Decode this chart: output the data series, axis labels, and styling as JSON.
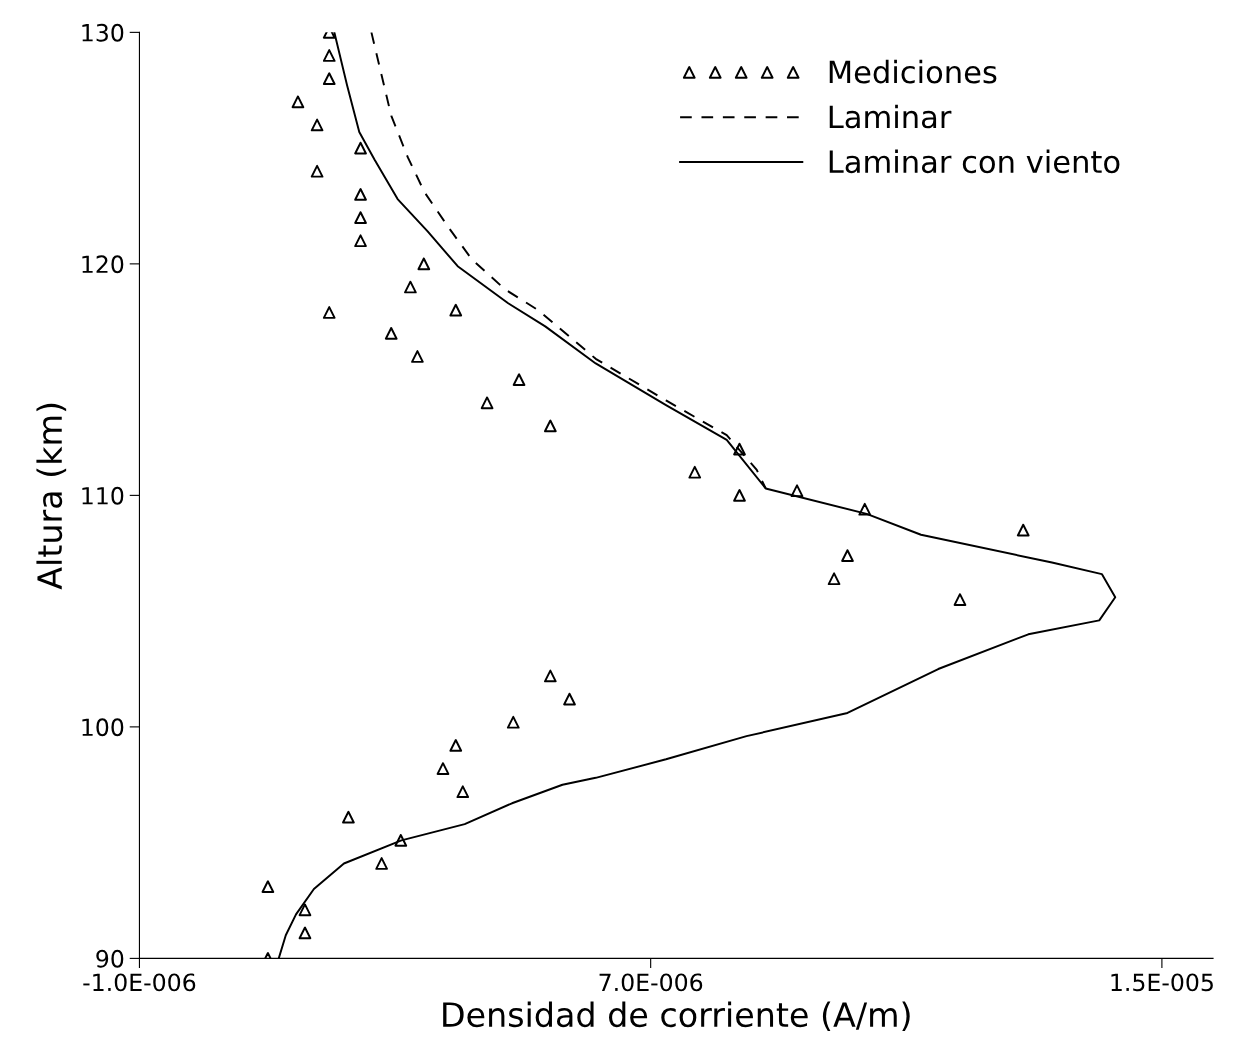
{
  "chart_data": {
    "type": "scatter",
    "xlabel": "Densidad de corriente (A/m)",
    "ylabel": "Altura (km)",
    "xlim": [
      -1e-06,
      1.58e-05
    ],
    "ylim": [
      90,
      130
    ],
    "xticks": [
      {
        "value": -1e-06,
        "label": "-1.0E-006"
      },
      {
        "value": 7e-06,
        "label": "7.0E-006"
      },
      {
        "value": 1.5e-05,
        "label": "1.5E-005"
      }
    ],
    "yticks": [
      90,
      100,
      110,
      120,
      130
    ],
    "grid": false,
    "legend": "top right",
    "series": [
      {
        "name": "Mediciones",
        "marker": "triangle",
        "color": "#000000",
        "x": [
          1.97e-06,
          1.97e-06,
          1.97e-06,
          1.48e-06,
          1.78e-06,
          2.46e-06,
          1.78e-06,
          2.46e-06,
          2.46e-06,
          2.46e-06,
          3.45e-06,
          3.24e-06,
          3.95e-06,
          1.97e-06,
          2.94e-06,
          3.35e-06,
          4.94e-06,
          4.44e-06,
          5.43e-06,
          8.39e-06,
          7.69e-06,
          8.39e-06,
          9.29e-06,
          1.035e-05,
          1.283e-05,
          1.008e-05,
          9.87e-06,
          1.184e-05,
          5.43e-06,
          5.73e-06,
          4.85e-06,
          3.95e-06,
          3.75e-06,
          4.06e-06,
          2.27e-06,
          3.09e-06,
          2.79e-06,
          1.01e-06,
          1.59e-06,
          1.59e-06,
          1.01e-06
        ],
        "values": [
          130.0,
          129.0,
          128.0,
          127.0,
          126.0,
          125.0,
          124.0,
          123.0,
          122.0,
          121.0,
          120.0,
          119.0,
          118.0,
          117.9,
          117.0,
          116.0,
          115.0,
          114.0,
          113.0,
          112.0,
          111.0,
          110.0,
          110.2,
          109.4,
          108.5,
          107.4,
          106.4,
          105.5,
          102.2,
          101.2,
          100.2,
          99.2,
          98.2,
          97.2,
          96.1,
          95.1,
          94.1,
          93.1,
          92.1,
          91.1,
          90.0
        ]
      },
      {
        "name": "Laminar",
        "type": "line",
        "line_style": "dashed",
        "marker": "none",
        "color": "#000000",
        "x": [
          2.63e-06,
          2.94e-06,
          3.2e-06,
          3.46e-06,
          3.83e-06,
          4.2e-06,
          4.72e-06,
          5.24e-06,
          6.14e-06,
          7.24e-06,
          8.19e-06,
          8.66e-06,
          8.8e-06
        ],
        "values": [
          130.0,
          126.4,
          124.6,
          123.1,
          121.6,
          120.2,
          118.9,
          118.0,
          115.9,
          114.1,
          112.6,
          111.1,
          110.3
        ]
      },
      {
        "name": "Laminar con viento",
        "type": "line",
        "line_style": "solid",
        "marker": "none",
        "color": "#000000",
        "x": [
          1.18e-06,
          1.29e-06,
          1.45e-06,
          1.73e-06,
          2.2e-06,
          3.1e-06,
          4.09e-06,
          4.83e-06,
          5.62e-06,
          6.14e-06,
          7.24e-06,
          8.5e-06,
          1.008e-05,
          1.15e-05,
          1.291e-05,
          1.402e-05,
          1.427e-05,
          1.406e-05,
          1.328e-05,
          1.123e-05,
          1.038e-05,
          8.8e-06,
          8.19e-06,
          7.24e-06,
          6.14e-06,
          5.35e-06,
          4.77e-06,
          3.98e-06,
          3.51e-06,
          3.04e-06,
          2.68e-06,
          2.44e-06,
          2.25e-06,
          2.05e-06
        ],
        "values": [
          90.0,
          91.0,
          91.9,
          93.0,
          94.1,
          95.1,
          95.8,
          96.7,
          97.5,
          97.8,
          98.6,
          99.6,
          100.6,
          102.5,
          104.0,
          104.6,
          105.6,
          106.6,
          107.1,
          108.3,
          109.2,
          110.3,
          112.4,
          113.9,
          115.7,
          117.3,
          118.3,
          119.9,
          121.4,
          122.8,
          124.5,
          125.7,
          127.7,
          130.0
        ]
      }
    ]
  }
}
